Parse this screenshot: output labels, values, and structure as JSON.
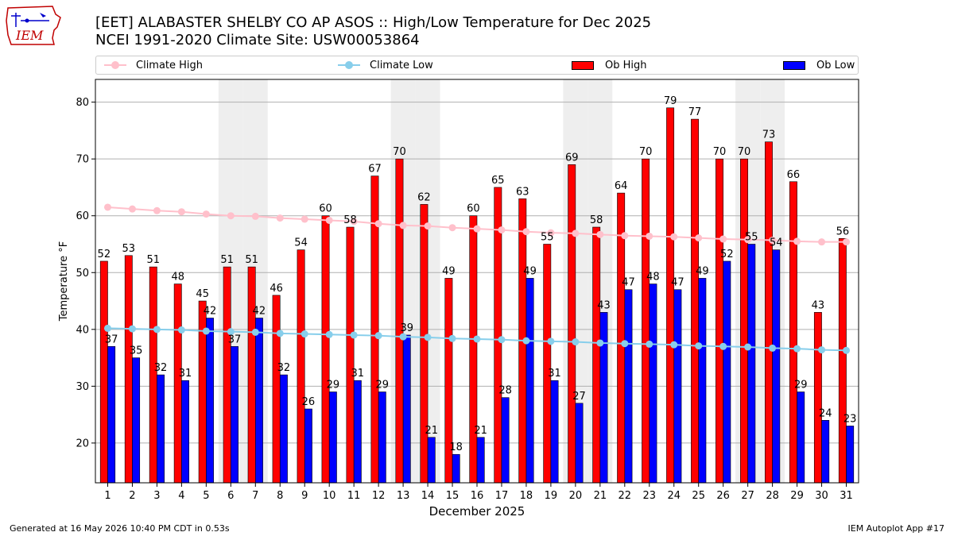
{
  "header": {
    "title_line1": "[EET] ALABASTER SHELBY CO AP ASOS :: High/Low Temperature for Dec 2025",
    "title_line2": "NCEI 1991-2020 Climate Site: USW00053864",
    "logo_text": "IEM"
  },
  "footer": {
    "left": "Generated at 16 May 2026 10:40 PM CDT in 0.53s",
    "right": "IEM Autoplot App #17"
  },
  "legend": {
    "climate_high": "Climate High",
    "climate_low": "Climate Low",
    "ob_high": "Ob High",
    "ob_low": "Ob Low"
  },
  "colors": {
    "ob_high": "#ff0000",
    "ob_low": "#0000ff",
    "climate_high": "#ffc0cb",
    "climate_low": "#87ceeb",
    "weekend_shade": "#eeeeee",
    "grid": "#b0b0b0"
  },
  "chart_data": {
    "type": "bar",
    "xlabel": "December 2025",
    "ylabel": "Temperature °F",
    "ylim": [
      13,
      84
    ],
    "yticks": [
      20,
      30,
      40,
      50,
      60,
      70,
      80
    ],
    "grid": "horizontal",
    "legend_position": "top",
    "categories": [
      "1",
      "2",
      "3",
      "4",
      "5",
      "6",
      "7",
      "8",
      "9",
      "10",
      "11",
      "12",
      "13",
      "14",
      "15",
      "16",
      "17",
      "18",
      "19",
      "20",
      "21",
      "22",
      "23",
      "24",
      "25",
      "26",
      "27",
      "28",
      "29",
      "30",
      "31"
    ],
    "shaded_days": [
      6,
      7,
      13,
      14,
      20,
      21,
      27,
      28
    ],
    "series": [
      {
        "name": "Ob High",
        "kind": "bar",
        "values": [
          52,
          53,
          51,
          48,
          45,
          51,
          51,
          46,
          54,
          60,
          58,
          67,
          70,
          62,
          49,
          60,
          65,
          63,
          55,
          69,
          58,
          64,
          70,
          79,
          77,
          70,
          70,
          73,
          66,
          43,
          56
        ]
      },
      {
        "name": "Ob Low",
        "kind": "bar",
        "values": [
          37,
          35,
          32,
          31,
          42,
          37,
          42,
          32,
          26,
          29,
          31,
          29,
          39,
          21,
          18,
          21,
          28,
          49,
          31,
          27,
          43,
          47,
          48,
          47,
          49,
          52,
          55,
          54,
          29,
          24,
          23
        ]
      },
      {
        "name": "Climate High",
        "kind": "line",
        "values": [
          61.5,
          61.2,
          60.9,
          60.7,
          60.3,
          60.0,
          59.9,
          59.6,
          59.4,
          59.2,
          59.0,
          58.6,
          58.3,
          58.2,
          57.9,
          57.7,
          57.5,
          57.2,
          57.0,
          56.9,
          56.7,
          56.5,
          56.4,
          56.3,
          56.1,
          55.9,
          55.8,
          55.7,
          55.5,
          55.4,
          55.4
        ]
      },
      {
        "name": "Climate Low",
        "kind": "line",
        "values": [
          40.2,
          40.1,
          40.0,
          39.9,
          39.7,
          39.6,
          39.5,
          39.3,
          39.2,
          39.1,
          39.0,
          38.9,
          38.7,
          38.6,
          38.4,
          38.3,
          38.2,
          38.0,
          37.9,
          37.8,
          37.6,
          37.5,
          37.4,
          37.3,
          37.1,
          37.0,
          36.9,
          36.7,
          36.6,
          36.4,
          36.3
        ]
      }
    ]
  }
}
